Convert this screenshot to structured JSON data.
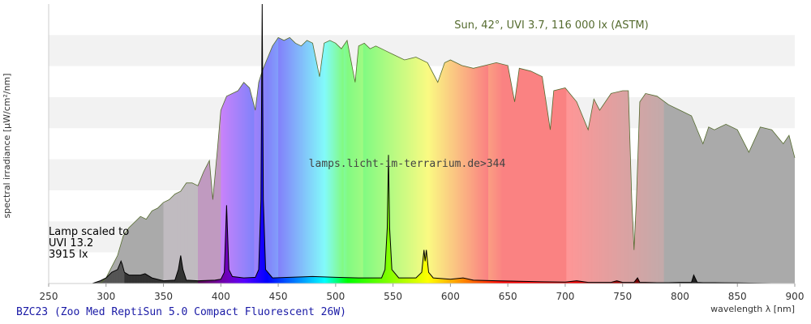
{
  "chart_data": {
    "type": "area",
    "title": "BZC23 (Zoo Med ReptiSun 5.0 Compact Fluorescent 26W)",
    "xlabel": "wavelength λ [nm]",
    "ylabel": "spectral irradiance [µW/cm²/nm]",
    "xlim": [
      250,
      900
    ],
    "ylim": [
      0,
      1
    ],
    "xticks": [
      250,
      300,
      350,
      400,
      450,
      500,
      550,
      600,
      650,
      700,
      750,
      800,
      850,
      900
    ],
    "grid": "horizontal bands",
    "annotations": {
      "sun_label": "Sun, 42°, UVI 3.7, 116 000 lx (ASTM)",
      "lamp_label": [
        "Lamp scaled to",
        "UVI 13.2",
        "3915 lx"
      ],
      "watermark": "lamps.licht-im-terrarium.de>344"
    },
    "series": [
      {
        "name": "Sun, 42°, UVI 3.7, 116 000 lx (ASTM)",
        "color": "#556b2f",
        "x": [
          295,
          300,
          305,
          310,
          315,
          320,
          325,
          330,
          335,
          340,
          345,
          350,
          355,
          360,
          365,
          370,
          375,
          380,
          385,
          390,
          393,
          397,
          400,
          405,
          410,
          415,
          420,
          425,
          430,
          433,
          436,
          440,
          445,
          450,
          455,
          460,
          465,
          470,
          475,
          480,
          486,
          490,
          495,
          500,
          505,
          510,
          517,
          520,
          525,
          530,
          535,
          540,
          545,
          550,
          560,
          570,
          580,
          589,
          595,
          600,
          610,
          620,
          630,
          640,
          650,
          656,
          660,
          670,
          680,
          687,
          690,
          700,
          710,
          720,
          725,
          730,
          740,
          750,
          755,
          758,
          760,
          762,
          765,
          770,
          780,
          790,
          800,
          810,
          820,
          825,
          830,
          840,
          850,
          860,
          870,
          880,
          890,
          895,
          900
        ],
        "y": [
          0.0,
          0.02,
          0.06,
          0.1,
          0.17,
          0.2,
          0.22,
          0.24,
          0.23,
          0.26,
          0.27,
          0.29,
          0.3,
          0.32,
          0.33,
          0.36,
          0.36,
          0.35,
          0.4,
          0.44,
          0.3,
          0.48,
          0.62,
          0.67,
          0.68,
          0.69,
          0.72,
          0.7,
          0.62,
          0.72,
          0.76,
          0.8,
          0.85,
          0.88,
          0.87,
          0.88,
          0.86,
          0.85,
          0.87,
          0.86,
          0.74,
          0.86,
          0.87,
          0.86,
          0.84,
          0.87,
          0.72,
          0.85,
          0.86,
          0.84,
          0.85,
          0.84,
          0.83,
          0.82,
          0.8,
          0.81,
          0.79,
          0.72,
          0.79,
          0.8,
          0.78,
          0.77,
          0.78,
          0.79,
          0.78,
          0.65,
          0.77,
          0.76,
          0.74,
          0.55,
          0.69,
          0.7,
          0.65,
          0.55,
          0.66,
          0.62,
          0.68,
          0.69,
          0.69,
          0.3,
          0.12,
          0.3,
          0.65,
          0.68,
          0.67,
          0.64,
          0.62,
          0.6,
          0.5,
          0.56,
          0.55,
          0.57,
          0.55,
          0.47,
          0.56,
          0.55,
          0.5,
          0.53,
          0.45
        ]
      },
      {
        "name": "BZC23 lamp",
        "color": "#000000",
        "x": [
          288,
          295,
          300,
          305,
          310,
          312,
          313,
          314,
          316,
          320,
          330,
          334,
          340,
          350,
          360,
          363,
          365,
          367,
          370,
          380,
          395,
          400,
          403,
          405,
          407,
          410,
          420,
          430,
          433,
          435,
          436,
          437,
          439,
          445,
          460,
          480,
          500,
          520,
          540,
          543,
          545,
          546,
          547,
          549,
          555,
          570,
          575,
          577,
          578,
          579,
          581,
          585,
          600,
          611,
          620,
          640,
          660,
          680,
          700,
          710,
          720,
          740,
          745,
          750,
          760,
          763,
          765,
          770,
          780,
          790,
          800,
          810,
          812,
          815,
          820,
          830,
          850,
          880
        ],
        "y": [
          0.0,
          0.01,
          0.02,
          0.04,
          0.05,
          0.07,
          0.08,
          0.07,
          0.04,
          0.03,
          0.03,
          0.035,
          0.02,
          0.01,
          0.012,
          0.05,
          0.1,
          0.05,
          0.012,
          0.01,
          0.012,
          0.015,
          0.04,
          0.28,
          0.05,
          0.025,
          0.02,
          0.022,
          0.05,
          0.3,
          1.0,
          0.3,
          0.05,
          0.02,
          0.022,
          0.025,
          0.022,
          0.02,
          0.02,
          0.05,
          0.2,
          0.46,
          0.2,
          0.05,
          0.02,
          0.02,
          0.04,
          0.12,
          0.08,
          0.12,
          0.04,
          0.02,
          0.015,
          0.02,
          0.012,
          0.01,
          0.008,
          0.006,
          0.005,
          0.01,
          0.004,
          0.004,
          0.01,
          0.004,
          0.004,
          0.02,
          0.004,
          0.004,
          0.003,
          0.003,
          0.004,
          0.004,
          0.03,
          0.004,
          0.003,
          0.003,
          0.002,
          0.0
        ]
      }
    ]
  }
}
